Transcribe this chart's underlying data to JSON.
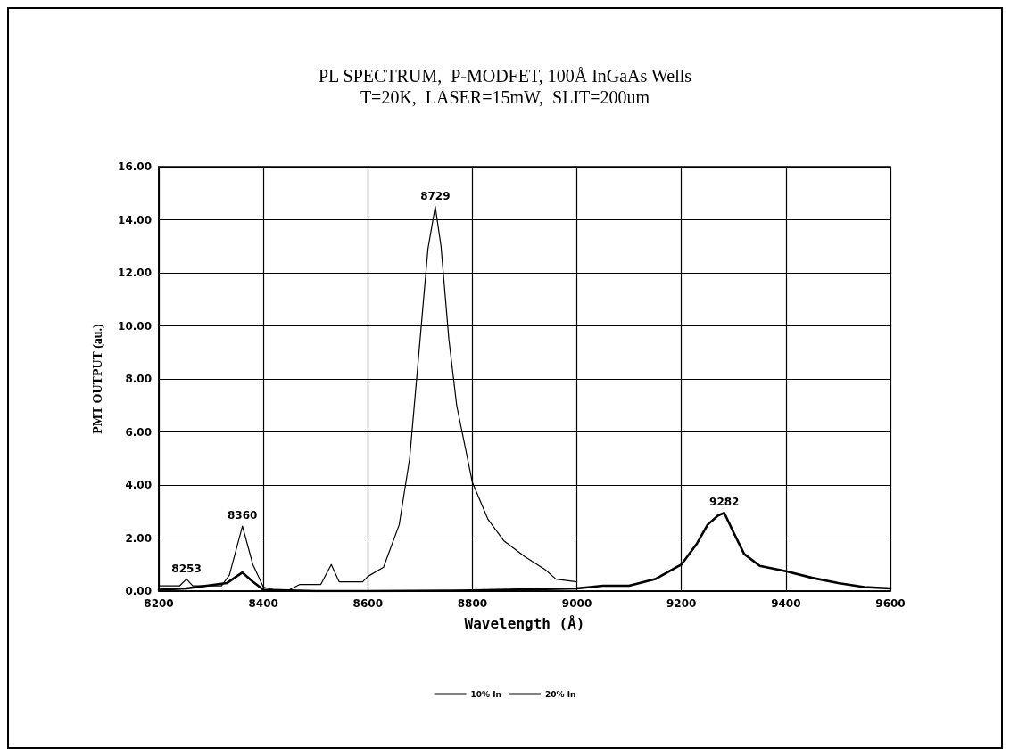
{
  "chart_data": {
    "type": "line",
    "title": "PL SPECTRUM,  P-MODFET, 100Å InGaAs Wells",
    "subtitle": "T=20K,  LASER=15mW,  SLIT=200um",
    "xlabel": "Wavelength (Å)",
    "ylabel": "PMT OUTPUT (au.)",
    "xlim": [
      8200,
      9600
    ],
    "xticks": [
      8200,
      8400,
      8600,
      8800,
      9000,
      9200,
      9400,
      9600
    ],
    "ylim": [
      0,
      16
    ],
    "yticks": [
      {
        "value": 0,
        "label": "0.00"
      },
      {
        "value": 2,
        "label": "2.00"
      },
      {
        "value": 4,
        "label": "4.00"
      },
      {
        "value": 6,
        "label": "6.00"
      },
      {
        "value": 8,
        "label": "8.00"
      },
      {
        "value": 10,
        "label": "10.00"
      },
      {
        "value": 12,
        "label": "12.00"
      },
      {
        "value": 14,
        "label": "14.00"
      },
      {
        "value": 16,
        "label": "16.00"
      }
    ],
    "grid": true,
    "legend": "bottom",
    "marker": "none",
    "line_style": "solid",
    "series": [
      {
        "name": "10% In",
        "color": "#000000",
        "x": [
          8200,
          8240,
          8253,
          8265,
          8320,
          8335,
          8360,
          8380,
          8400,
          8420,
          8450,
          8470,
          8510,
          8530,
          8545,
          8590,
          8600,
          8630,
          8660,
          8680,
          8700,
          8715,
          8729,
          8740,
          8755,
          8770,
          8800,
          8830,
          8860,
          8900,
          8940,
          8960,
          9000
        ],
        "values": [
          0.2,
          0.2,
          0.45,
          0.2,
          0.2,
          0.6,
          2.45,
          1.0,
          0.15,
          0.05,
          0.05,
          0.25,
          0.25,
          1.0,
          0.35,
          0.35,
          0.55,
          0.9,
          2.5,
          5.0,
          9.5,
          12.9,
          14.5,
          13.0,
          9.5,
          7.0,
          4.1,
          2.7,
          1.9,
          1.3,
          0.8,
          0.45,
          0.35
        ]
      },
      {
        "name": "20% In",
        "color": "#000000",
        "x": [
          8200,
          8253,
          8330,
          8360,
          8380,
          8400,
          8500,
          8600,
          8800,
          9000,
          9050,
          9100,
          9150,
          9200,
          9230,
          9250,
          9270,
          9282,
          9300,
          9320,
          9350,
          9400,
          9450,
          9500,
          9550,
          9600
        ],
        "values": [
          0.05,
          0.1,
          0.3,
          0.7,
          0.35,
          0.05,
          0.0,
          0.0,
          0.02,
          0.1,
          0.2,
          0.2,
          0.45,
          1.0,
          1.8,
          2.5,
          2.85,
          2.95,
          2.2,
          1.4,
          0.95,
          0.75,
          0.5,
          0.3,
          0.15,
          0.1
        ]
      }
    ],
    "annotations": [
      {
        "text": "8253",
        "x": 8253,
        "y": 0.45
      },
      {
        "text": "8360",
        "x": 8360,
        "y": 2.45
      },
      {
        "text": "8729",
        "x": 8729,
        "y": 14.5
      },
      {
        "text": "9282",
        "x": 9282,
        "y": 2.95
      }
    ]
  }
}
